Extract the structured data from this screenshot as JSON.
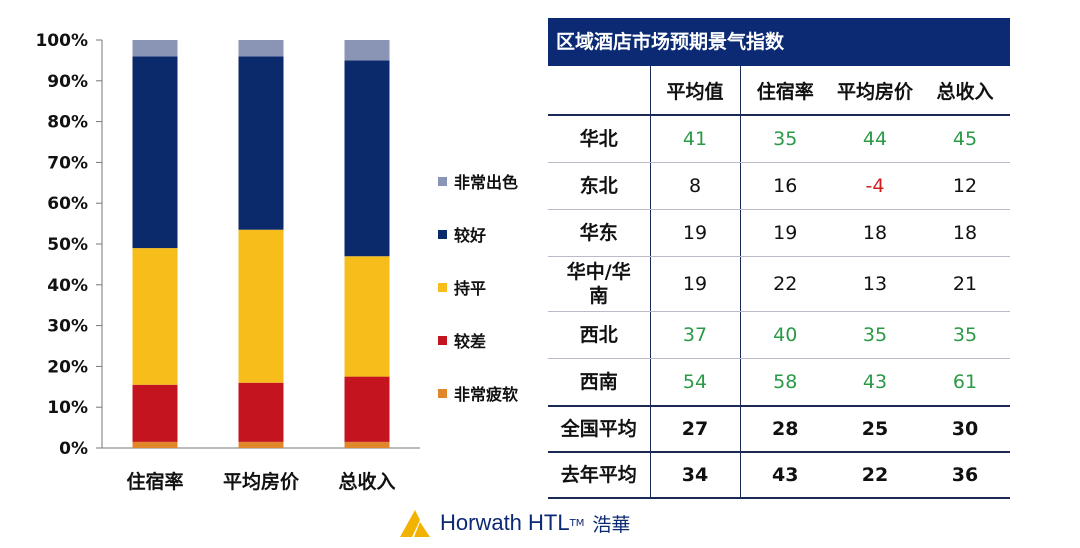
{
  "chart_data": {
    "type": "bar",
    "stacked": true,
    "categories": [
      "住宿率",
      "平均房价",
      "总收入"
    ],
    "y_ticks": [
      "0%",
      "10%",
      "20%",
      "30%",
      "40%",
      "50%",
      "60%",
      "70%",
      "80%",
      "90%",
      "100%"
    ],
    "ylim": [
      0,
      100
    ],
    "legend_placement": "right",
    "series": [
      {
        "name": "非常疲软",
        "color": "#e0862b",
        "values": [
          1.5,
          1.5,
          1.5
        ]
      },
      {
        "name": "较差",
        "color": "#c4141f",
        "values": [
          14,
          14.5,
          16
        ]
      },
      {
        "name": "持平",
        "color": "#f6bd1b",
        "values": [
          33.5,
          37.5,
          29.5
        ]
      },
      {
        "name": "较好",
        "color": "#0b2a6b",
        "values": [
          47,
          42.5,
          48
        ]
      },
      {
        "name": "非常出色",
        "color": "#8a94b5",
        "values": [
          4,
          4,
          5
        ]
      }
    ],
    "legend_order": [
      "非常出色",
      "较好",
      "持平",
      "较差",
      "非常疲软"
    ]
  },
  "table": {
    "title": "区域酒店市场预期景气指数",
    "headers": [
      "",
      "平均值",
      "住宿率",
      "平均房价",
      "总收入"
    ],
    "rows": [
      {
        "region": "华北",
        "values": [
          "41",
          "35",
          "44",
          "45"
        ],
        "colors": [
          "green",
          "green",
          "green",
          "green"
        ]
      },
      {
        "region": "东北",
        "values": [
          "8",
          "16",
          "-4",
          "12"
        ],
        "colors": [
          "black",
          "black",
          "red",
          "black"
        ]
      },
      {
        "region": "华东",
        "values": [
          "19",
          "19",
          "18",
          "18"
        ],
        "colors": [
          "black",
          "black",
          "black",
          "black"
        ]
      },
      {
        "region": "华中/华南",
        "values": [
          "19",
          "22",
          "13",
          "21"
        ],
        "colors": [
          "black",
          "black",
          "black",
          "black"
        ]
      },
      {
        "region": "西北",
        "values": [
          "37",
          "40",
          "35",
          "35"
        ],
        "colors": [
          "green",
          "green",
          "green",
          "green"
        ]
      },
      {
        "region": "西南",
        "values": [
          "54",
          "58",
          "43",
          "61"
        ],
        "colors": [
          "green",
          "green",
          "green",
          "green"
        ]
      }
    ],
    "summary": [
      {
        "region": "全国平均",
        "values": [
          "27",
          "28",
          "25",
          "30"
        ]
      },
      {
        "region": "去年平均",
        "values": [
          "34",
          "43",
          "22",
          "36"
        ]
      }
    ]
  },
  "logo": {
    "text": "Horwath HTL",
    "tm": "TM",
    "cn": "浩華",
    "mark_color": "#f2b300",
    "text_color": "#0c2a73"
  }
}
